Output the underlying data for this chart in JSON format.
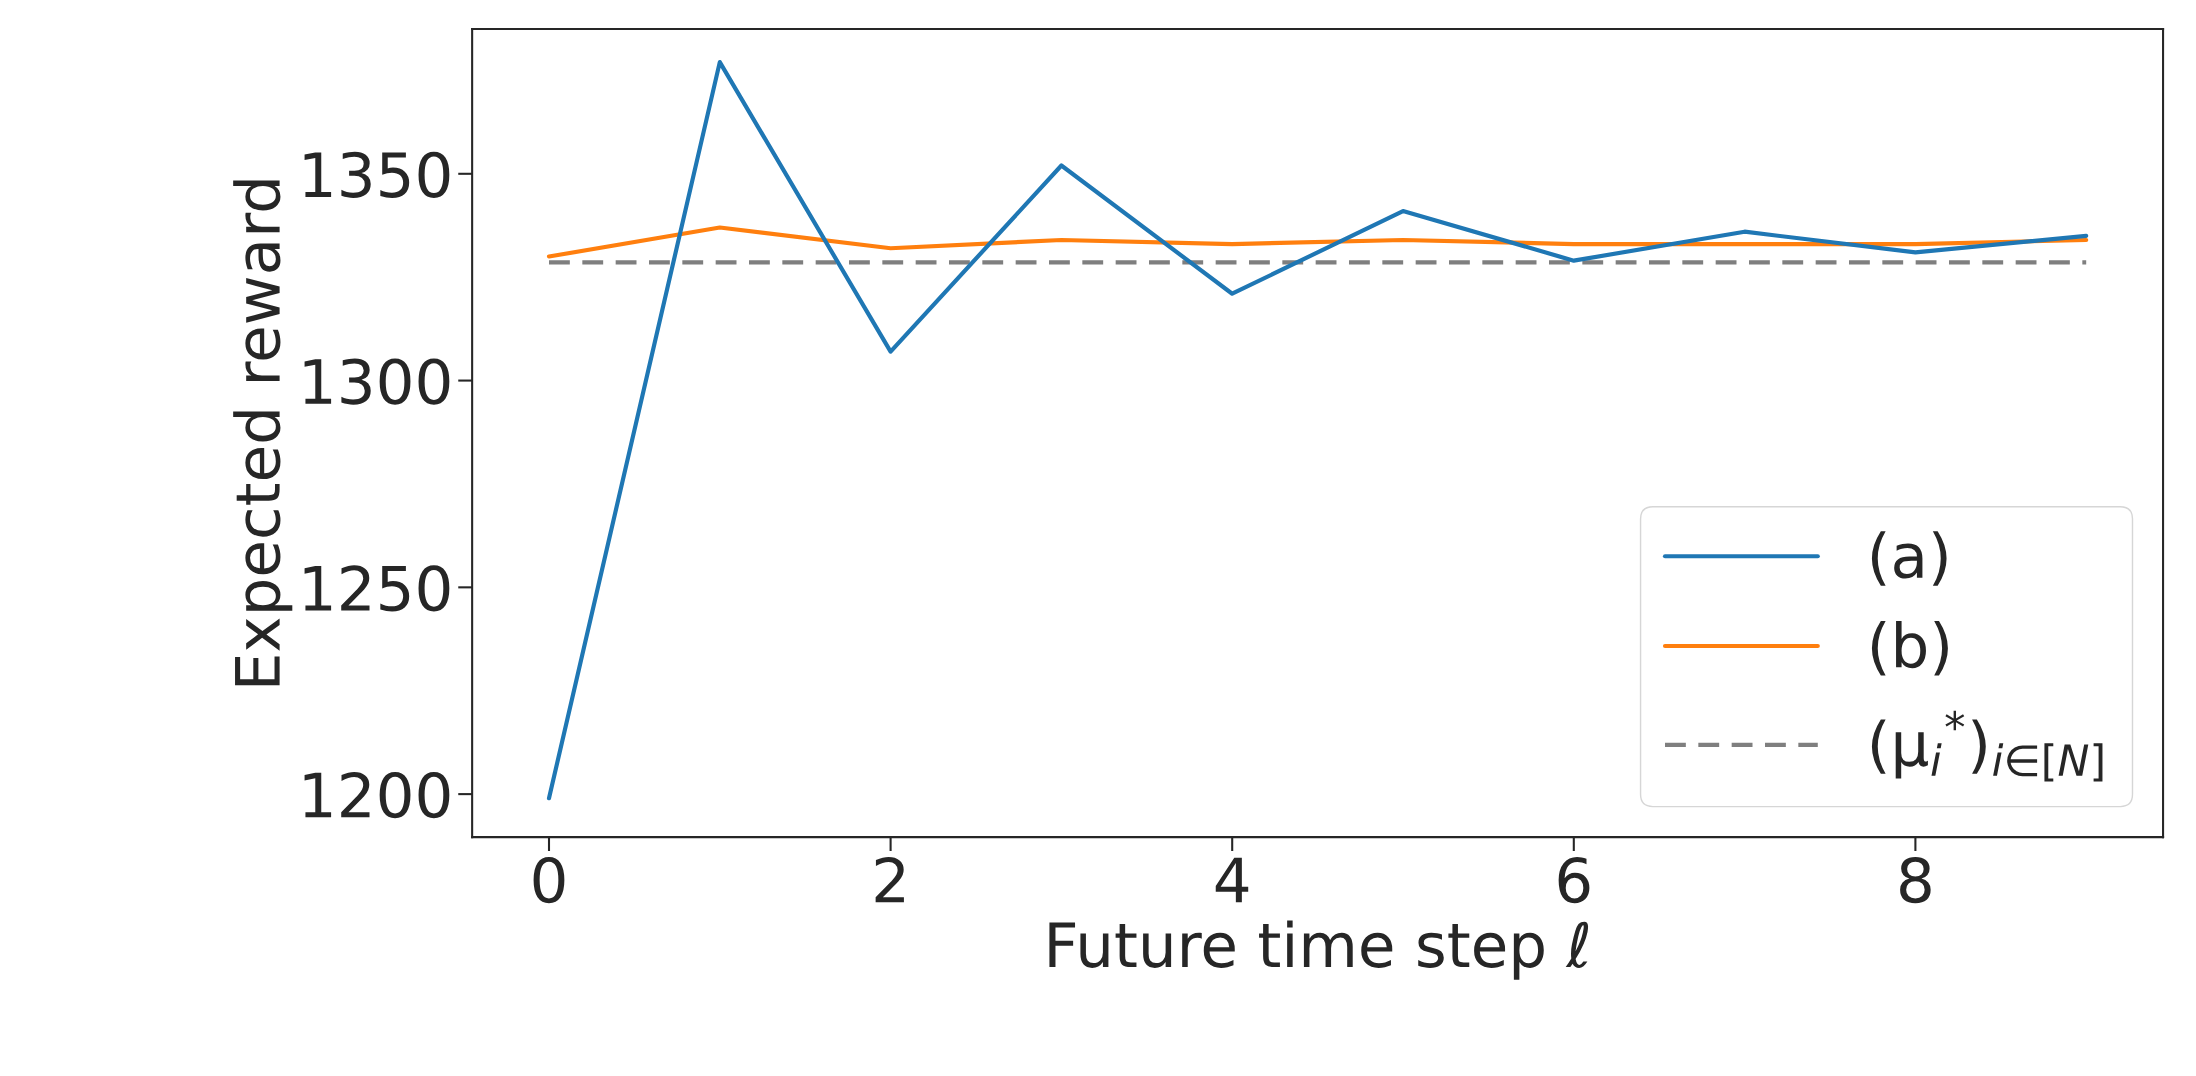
{
  "chart_data": {
    "type": "line",
    "xlabel": "Future time step ℓ",
    "ylabel": "Expected reward",
    "x": [
      0,
      1,
      2,
      3,
      4,
      5,
      6,
      7,
      8,
      9
    ],
    "series": [
      {
        "name": "(a)",
        "color": "#1f77b4",
        "line_style": "solid",
        "values": [
          1199,
          1377,
          1307,
          1352,
          1321,
          1341,
          1329,
          1336,
          1331,
          1335
        ]
      },
      {
        "name": "(b)",
        "color": "#ff7f0e",
        "line_style": "solid",
        "values": [
          1330,
          1337,
          1332,
          1334,
          1333,
          1334,
          1333,
          1333,
          1333,
          1334
        ]
      },
      {
        "name": "(μ$_{i}$$^{*}$)$_{i∈[N]}$",
        "color": "#7f7f7f",
        "line_style": "dashed",
        "values": [
          1328.6,
          1328.6,
          1328.6,
          1328.6,
          1328.6,
          1328.6,
          1328.6,
          1328.6,
          1328.6,
          1328.6
        ]
      }
    ],
    "xlim": [
      -0.45,
      9.45
    ],
    "ylim": [
      1189.6,
      1385
    ],
    "xticks": [
      0,
      2,
      4,
      6,
      8
    ],
    "yticks": [
      1200,
      1250,
      1300,
      1350
    ],
    "grid": false,
    "legend": "lower right",
    "marker": "none"
  }
}
